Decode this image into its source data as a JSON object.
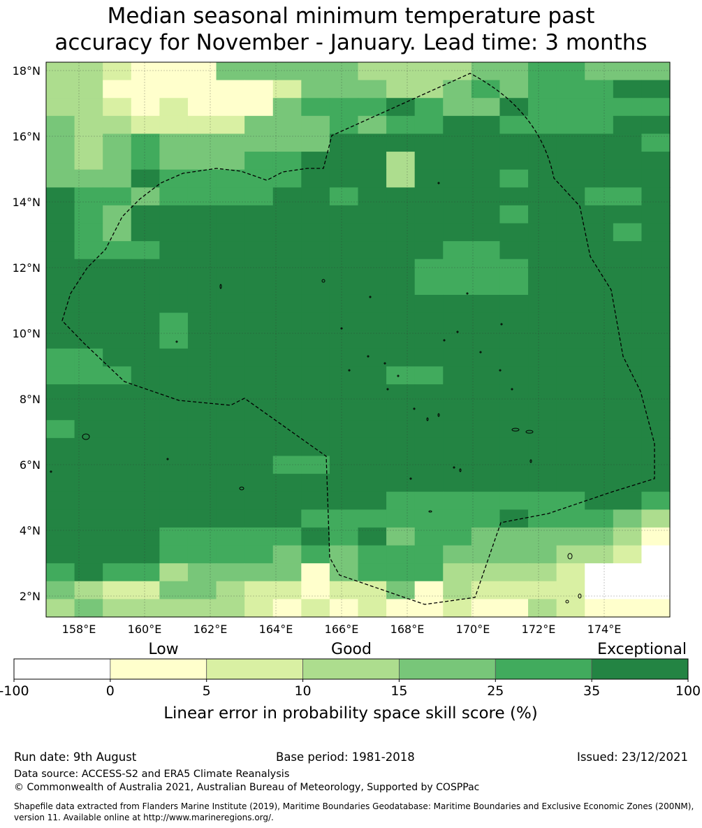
{
  "title_line1": "Median seasonal minimum temperature past",
  "title_line2": "accuracy for November - January. Lead time: 3 months",
  "lon_ticks": [
    "158°E",
    "160°E",
    "162°E",
    "164°E",
    "166°E",
    "168°E",
    "170°E",
    "172°E",
    "174°E"
  ],
  "lat_ticks": [
    "18°N",
    "16°N",
    "14°N",
    "12°N",
    "10°N",
    "8°N",
    "6°N",
    "4°N",
    "2°N"
  ],
  "legend": {
    "categories": [
      "Low",
      "Good",
      "Exceptional"
    ],
    "boundaries": [
      "-100",
      "0",
      "5",
      "10",
      "15",
      "25",
      "35",
      "100"
    ],
    "colors": [
      "#ffffff",
      "#ffffcc",
      "#d9f0a3",
      "#addd8e",
      "#78c679",
      "#41ab5d",
      "#238443"
    ],
    "label": "Linear error in probability space skill score (%)"
  },
  "footer": {
    "run_date": "Run date: 9th August",
    "base_period": "Base period: 1981-2018",
    "issued": "Issued: 23/12/2021",
    "data_source": "Data source: ACCESS-S2 and ERA5 Climate Reanalysis",
    "copyright": "© Commonwealth of Australia 2021, Australian Bureau of Meteorology, Supported by COSPPac",
    "shapefile": "Shapefile data extracted from Flanders Marine Institute (2019), Maritime Boundaries Geodatabase: Maritime Boundaries and Exclusive Economic Zones (200NM), version 11. Available online at http://www.marineregions.org/."
  },
  "grid": [
    "3321114444433334455444",
    "3311111124443345455566",
    "3321211145556544655555",
    "4332222444545566555566",
    "4345444444666666666665",
    "4345444556663666666666",
    "4446555556663666566666",
    "6554555566566666666556",
    "6546666666666666566666",
    "6546666666666666666656",
    "6555666666666655666666",
    "6666666666666555566666",
    "6666666666666555566666",
    "6666666666666666666666",
    "6666566666666666666666",
    "6666566666666666666666",
    "5566666666666666666666",
    "5556666666665566666666",
    "6666666666666666666666",
    "6666666666666666666666",
    "5666666666666666666666",
    "6666666666666666666666",
    "6666666655666666666666",
    "6666666666666666666666",
    "6666666666665555555665",
    "6666666665555555655543",
    "6666555556564554444431",
    "6666555545455544443320",
    "5655344441455533332000",
    "4322443221224132222000",
    "3433333212121121132111"
  ]
}
